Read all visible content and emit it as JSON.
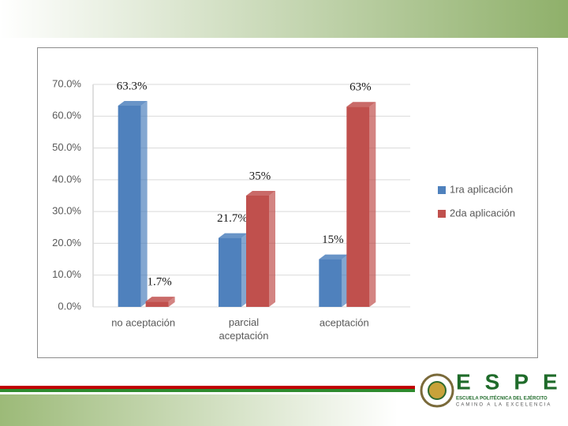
{
  "chart_data": {
    "type": "bar",
    "categories": [
      "no aceptación",
      "parcial aceptación",
      "aceptación"
    ],
    "series": [
      {
        "name": "1ra aplicación",
        "color": "#4f81bd",
        "values": [
          63.3,
          21.7,
          15
        ],
        "value_labels": [
          "63.3%",
          "21.7%",
          "15%"
        ]
      },
      {
        "name": "2da aplicación",
        "color": "#c0504d",
        "values": [
          1.7,
          35,
          63
        ],
        "value_labels": [
          "1.7%",
          "35%",
          "63%"
        ]
      }
    ],
    "ylim": [
      0,
      70
    ],
    "yticks": [
      {
        "value": 0,
        "label": "0.0%"
      },
      {
        "value": 10,
        "label": "10.0%"
      },
      {
        "value": 20,
        "label": "20.0%"
      },
      {
        "value": 30,
        "label": "30.0%"
      },
      {
        "value": 40,
        "label": "40.0%"
      },
      {
        "value": 50,
        "label": "50.0%"
      },
      {
        "value": 60,
        "label": "60.0%"
      },
      {
        "value": 70,
        "label": "70.0%"
      }
    ],
    "grid": true,
    "legend": "right"
  },
  "footer": {
    "logo": "ESPE",
    "institution": "ESCUELA POLITÉCNICA DEL EJÉRCITO",
    "motto": "CAMINO A LA EXCELENCIA"
  }
}
